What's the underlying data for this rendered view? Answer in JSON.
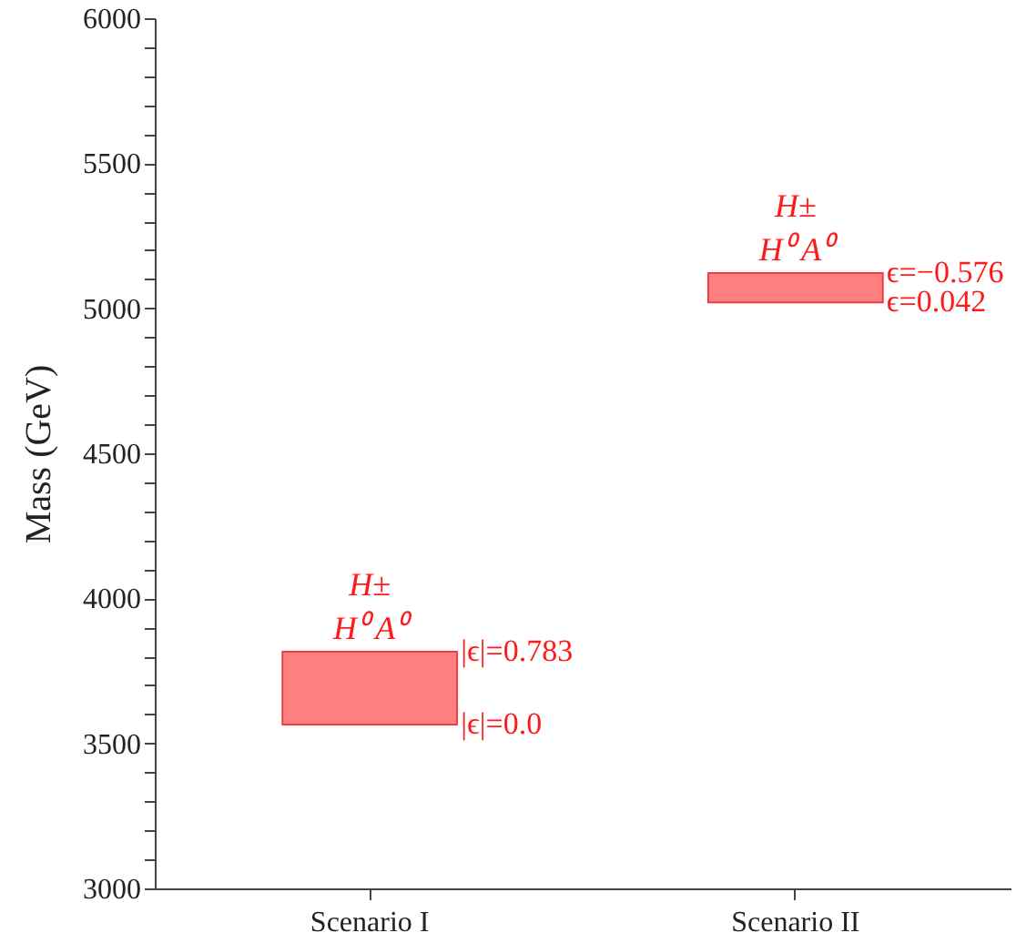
{
  "chart_data": {
    "type": "bar",
    "categories": [
      "Scenario I",
      "Scenario II"
    ],
    "base": [
      3565,
      5020
    ],
    "values": [
      251,
      101
    ],
    "color": "#ff8080",
    "ylabel": "Mass (GeV)",
    "ylim": [
      3000,
      6000
    ],
    "yticks": [
      3000,
      {
        "value": 3100,
        "label": null
      },
      {
        "value": 3200,
        "label": null
      },
      {
        "value": 3300,
        "label": null
      },
      {
        "value": 3400,
        "label": null
      },
      3500,
      {
        "value": 3600,
        "label": null
      },
      {
        "value": 3700,
        "label": null
      },
      {
        "value": 3800,
        "label": null
      },
      {
        "value": 3900,
        "label": null
      },
      4000,
      {
        "value": 4100,
        "label": null
      },
      {
        "value": 4200,
        "label": null
      },
      {
        "value": 4300,
        "label": null
      },
      {
        "value": 4400,
        "label": null
      },
      4500,
      {
        "value": 4600,
        "label": null
      },
      {
        "value": 4700,
        "label": null
      },
      {
        "value": 4800,
        "label": null
      },
      {
        "value": 4900,
        "label": null
      },
      5000,
      {
        "value": 5100,
        "label": null
      },
      {
        "value": 5200,
        "label": null
      },
      {
        "value": 5300,
        "label": null
      },
      {
        "value": 5400,
        "label": null
      },
      5500,
      {
        "value": 5600,
        "label": null
      },
      {
        "value": 5700,
        "label": null
      },
      {
        "value": 5800,
        "label": null
      },
      {
        "value": 5900,
        "label": null
      },
      6000
    ],
    "grid": false,
    "annotations": [
      "H±",
      "H⁰ A⁰",
      {
        "text": "|ϵ|=0.783",
        "x": "Scenario I",
        "y": 3816
      },
      {
        "text": "|ϵ|=0.0",
        "x": "Scenario I",
        "y": 3565
      },
      "H±",
      "H⁰ A⁰",
      {
        "text": "ϵ=−0.576",
        "x": "Scenario II",
        "y": 5121
      },
      {
        "text": "ϵ=0.042",
        "x": "Scenario II",
        "y": 5020
      }
    ]
  }
}
